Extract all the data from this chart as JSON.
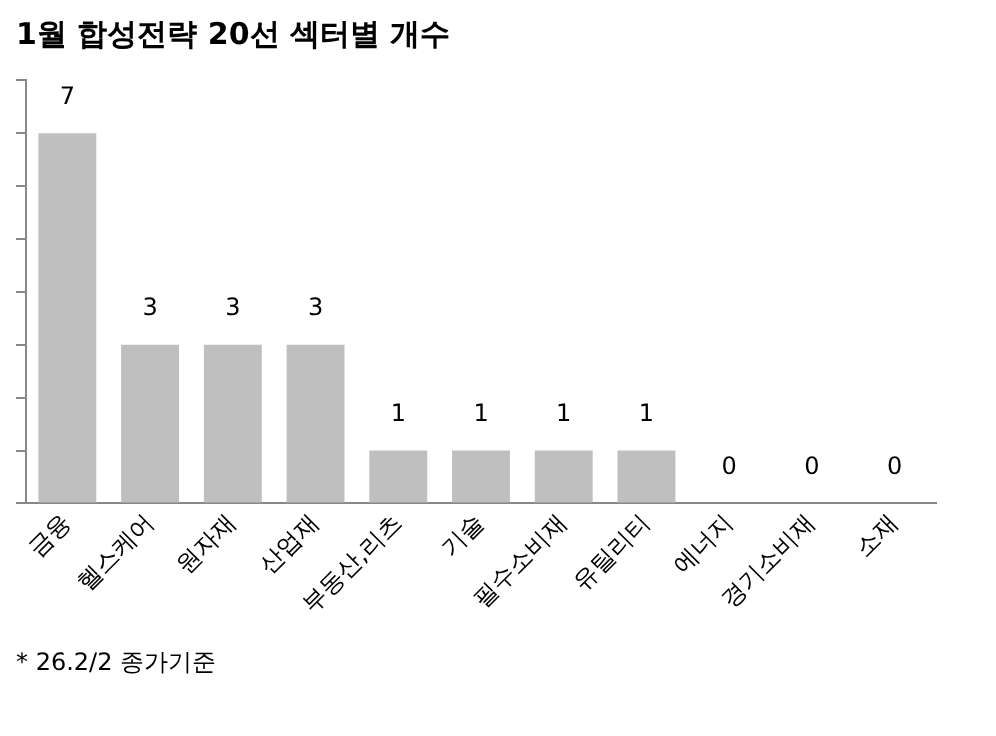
{
  "chart_data": {
    "type": "bar",
    "title": "1월 합성전략 20선 섹터별 개수",
    "categories": [
      "금융",
      "헬스케어",
      "원자재",
      "산업재",
      "부동산,리츠",
      "기술",
      "필수소비재",
      "유틸리티",
      "에너지",
      "경기소비재",
      "소재"
    ],
    "values": [
      7,
      3,
      3,
      3,
      1,
      1,
      1,
      1,
      0,
      0,
      0
    ],
    "color": "#bfbfbf",
    "ylim": [
      0,
      8
    ],
    "yticks": [
      {
        "value": 0,
        "label": null
      },
      {
        "value": 1,
        "label": null
      },
      {
        "value": 2,
        "label": null
      },
      {
        "value": 3,
        "label": null
      },
      {
        "value": 4,
        "label": null
      },
      {
        "value": 5,
        "label": null
      },
      {
        "value": 6,
        "label": null
      },
      {
        "value": 7,
        "label": null
      },
      {
        "value": 8,
        "label": null
      }
    ],
    "grid": false,
    "legend": false,
    "data_labels": true,
    "annotations": [
      "* 26.2/2 종가기준"
    ]
  }
}
